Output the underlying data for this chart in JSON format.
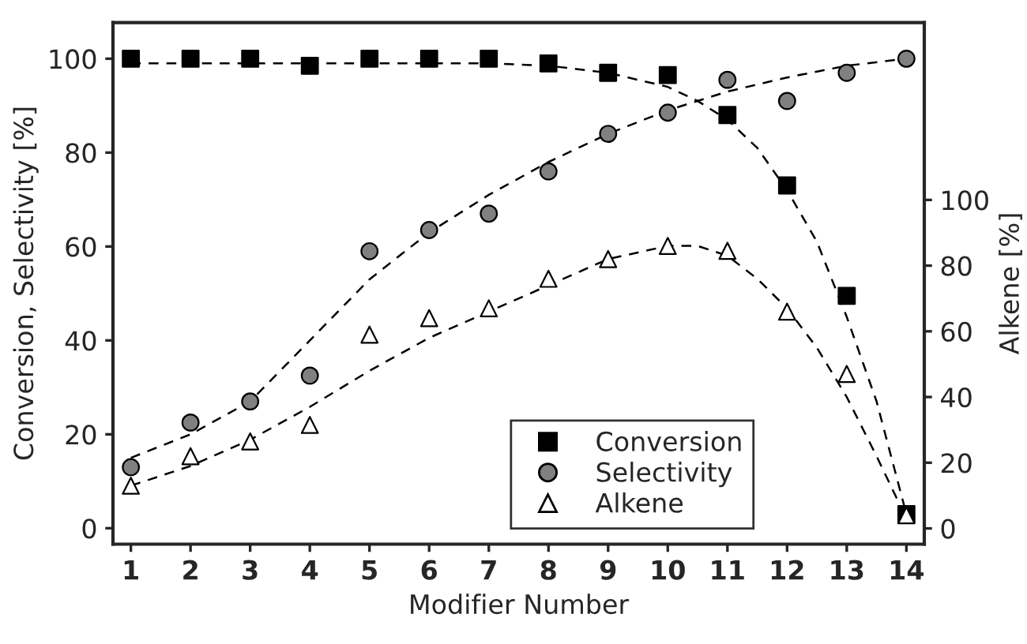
{
  "chart_data": {
    "type": "scatter",
    "xlabel": "Modifier Number",
    "ylabel": "Conversion, Selectivity [%]",
    "y2label": "Alkene [%]",
    "x": [
      1,
      2,
      3,
      4,
      5,
      6,
      7,
      8,
      9,
      10,
      11,
      12,
      13,
      14
    ],
    "xlim": [
      0.7,
      14.3
    ],
    "xticks": [
      1,
      2,
      3,
      4,
      5,
      6,
      7,
      8,
      9,
      10,
      11,
      12,
      13,
      14
    ],
    "ylim": [
      -3.4,
      107.7
    ],
    "yticks": [
      0,
      20,
      40,
      60,
      80,
      100
    ],
    "y2lim": [
      -4.8,
      154
    ],
    "y2ticks": [
      0,
      20,
      40,
      60,
      80,
      100
    ],
    "grid": false,
    "legend": "bottom",
    "series": [
      {
        "name": "Conversion",
        "marker": "square",
        "color": "#000000",
        "values": [
          100,
          100,
          100,
          98.5,
          100,
          100,
          100,
          99,
          97,
          96.5,
          88,
          73,
          49.5,
          3
        ]
      },
      {
        "name": "Selectivity",
        "marker": "circle",
        "color": "#808080",
        "values": [
          13,
          22.5,
          27,
          32.5,
          59,
          63.5,
          67,
          76,
          84,
          88.5,
          95.5,
          91,
          97,
          100
        ]
      },
      {
        "name": "Alkene",
        "marker": "triangle",
        "color": "#ffffff",
        "axis": "y2",
        "values": [
          13,
          22,
          26.5,
          31.5,
          59,
          64,
          67,
          76,
          82,
          86,
          84.5,
          66,
          47,
          4
        ]
      },
      {
        "type": "line",
        "line_style": "dashed",
        "marker": "none",
        "color": "#000000",
        "x": [
          1,
          2,
          3,
          4,
          5,
          6,
          7,
          8,
          9,
          10,
          10.5,
          11,
          11.5,
          12,
          12.5,
          13,
          13.5,
          14
        ],
        "values": [
          99,
          99,
          99,
          99,
          99,
          99,
          99,
          98.5,
          97,
          94,
          91,
          87,
          81,
          72,
          61,
          45,
          27,
          3
        ]
      },
      {
        "type": "line",
        "line_style": "dashed",
        "marker": "none",
        "color": "#000000",
        "x": [
          1,
          2,
          3,
          4,
          5,
          6,
          7,
          8,
          9,
          10,
          11,
          12,
          13,
          14
        ],
        "values": [
          15,
          20,
          27,
          40,
          53,
          63,
          71,
          78,
          84,
          89,
          93,
          96,
          98.5,
          100
        ]
      },
      {
        "type": "line",
        "line_style": "dashed",
        "marker": "none",
        "color": "#000000",
        "axis": "y2",
        "x": [
          1,
          2,
          3,
          4,
          5,
          6,
          7,
          8,
          9,
          10,
          10.5,
          11,
          11.5,
          12,
          12.5,
          13,
          13.5,
          14
        ],
        "values": [
          13,
          19,
          27,
          37,
          48,
          58,
          66,
          74,
          82,
          86,
          86,
          83,
          76,
          67,
          55,
          40,
          22,
          3
        ]
      }
    ]
  }
}
